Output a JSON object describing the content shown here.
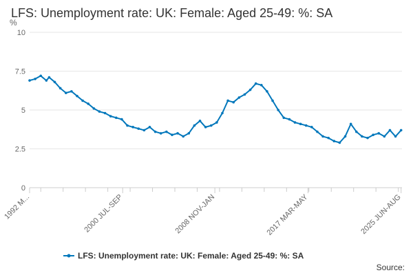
{
  "chart_data": {
    "type": "line",
    "title": "LFS: Unemployment rate: UK: Female: Aged 25-49: %: SA",
    "ylabel": "%",
    "ylim": [
      0,
      10
    ],
    "yticks": [
      "0",
      "2.5",
      "5",
      "7.5",
      "10"
    ],
    "xlim": [
      1992.25,
      2025.58
    ],
    "grid": true,
    "legend_position": "bottom",
    "series_color": "#0077bb",
    "x_tick_labels": [
      {
        "label": "1992 M...",
        "x": 1992.25
      },
      {
        "label": "2000 JUL-SEP",
        "x": 2000.58
      },
      {
        "label": "2008 NOV-JAN",
        "x": 2008.83
      },
      {
        "label": "2017 MAR-MAY",
        "x": 2017.17
      },
      {
        "label": "2025 JUN-AUG",
        "x": 2025.5
      }
    ],
    "series": [
      {
        "name": "LFS: Unemployment rate: UK: Female: Aged 25-49: %: SA",
        "x": [
          1992.25,
          1992.75,
          1993.25,
          1993.75,
          1994.0,
          1994.5,
          1995.0,
          1995.5,
          1996.0,
          1996.5,
          1997.0,
          1997.5,
          1998.0,
          1998.5,
          1999.0,
          1999.5,
          2000.0,
          2000.5,
          2001.0,
          2001.5,
          2002.0,
          2002.5,
          2003.0,
          2003.5,
          2004.0,
          2004.5,
          2005.0,
          2005.5,
          2006.0,
          2006.5,
          2007.0,
          2007.5,
          2008.0,
          2008.5,
          2009.0,
          2009.5,
          2010.0,
          2010.5,
          2011.0,
          2011.5,
          2012.0,
          2012.5,
          2013.0,
          2013.5,
          2014.0,
          2014.5,
          2015.0,
          2015.5,
          2016.0,
          2016.5,
          2017.0,
          2017.5,
          2018.0,
          2018.5,
          2019.0,
          2019.5,
          2020.0,
          2020.5,
          2021.0,
          2021.5,
          2022.0,
          2022.5,
          2023.0,
          2023.5,
          2024.0,
          2024.5,
          2025.0,
          2025.5
        ],
        "y": [
          6.9,
          7.0,
          7.2,
          6.9,
          7.1,
          6.8,
          6.4,
          6.1,
          6.2,
          5.9,
          5.6,
          5.4,
          5.1,
          4.9,
          4.8,
          4.6,
          4.5,
          4.4,
          4.0,
          3.9,
          3.8,
          3.7,
          3.9,
          3.6,
          3.5,
          3.6,
          3.4,
          3.5,
          3.3,
          3.5,
          4.0,
          4.3,
          3.9,
          4.0,
          4.2,
          4.8,
          5.6,
          5.5,
          5.8,
          6.0,
          6.3,
          6.7,
          6.6,
          6.2,
          5.6,
          5.0,
          4.5,
          4.4,
          4.2,
          4.1,
          4.0,
          3.9,
          3.6,
          3.3,
          3.2,
          3.0,
          2.9,
          3.3,
          4.1,
          3.6,
          3.3,
          3.2,
          3.4,
          3.5,
          3.3,
          3.7,
          3.3,
          3.7
        ]
      }
    ],
    "source_label": "Source:"
  }
}
